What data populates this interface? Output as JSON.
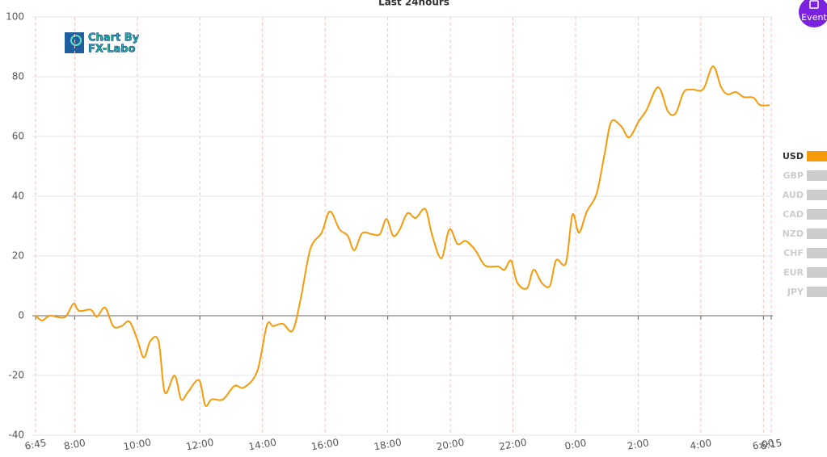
{
  "chart_data": {
    "type": "line",
    "title": "Last 24hours",
    "x": [
      6.75,
      6.96,
      7.21,
      7.68,
      7.96,
      8.14,
      8.51,
      8.71,
      8.97,
      9.23,
      9.49,
      9.75,
      10.0,
      10.21,
      10.42,
      10.68,
      10.88,
      11.19,
      11.4,
      11.61,
      11.97,
      12.17,
      12.38,
      12.74,
      13.1,
      13.41,
      13.83,
      14.14,
      14.34,
      14.65,
      14.96,
      15.22,
      15.53,
      15.89,
      16.15,
      16.46,
      16.72,
      16.93,
      17.18,
      17.49,
      17.75,
      17.96,
      18.17,
      18.37,
      18.63,
      18.89,
      19.2,
      19.41,
      19.71,
      19.97,
      20.23,
      20.49,
      20.8,
      21.11,
      21.52,
      21.73,
      21.94,
      22.14,
      22.45,
      22.66,
      22.92,
      23.18,
      23.38,
      23.69,
      23.9,
      24.11,
      24.36,
      24.67,
      24.93,
      25.14,
      25.45,
      25.71,
      26.02,
      26.27,
      26.64,
      26.95,
      27.2,
      27.46,
      27.72,
      28.08,
      28.39,
      28.65,
      28.86,
      29.12,
      29.37,
      29.68,
      29.89,
      30.2
    ],
    "series": [
      {
        "name": "USD",
        "color": "#f59b0b",
        "visible": true,
        "values": [
          0,
          -1.6,
          0,
          -0.5,
          4,
          1.6,
          2,
          -0.3,
          2.7,
          -3.5,
          -3.5,
          -2,
          -8,
          -14,
          -8.4,
          -8.6,
          -25.7,
          -20,
          -28,
          -25.7,
          -21.6,
          -30,
          -28,
          -28,
          -23.5,
          -24,
          -18.6,
          -3.2,
          -3.5,
          -2.7,
          -5,
          5.7,
          22.4,
          27.8,
          34.9,
          28.9,
          26.8,
          21.9,
          27.6,
          27.3,
          27.3,
          32.4,
          26.8,
          28.6,
          34.3,
          32.7,
          35.7,
          27.3,
          19.2,
          28.9,
          24,
          25,
          21.9,
          16.8,
          16.5,
          15.4,
          18.4,
          11,
          9.2,
          15.4,
          11,
          10,
          18.6,
          17.6,
          33.8,
          27.8,
          34.9,
          40.8,
          54.3,
          64.9,
          63.5,
          59.7,
          65.1,
          68.9,
          76.5,
          68.4,
          67.8,
          74.9,
          75.7,
          75.9,
          83.5,
          76.5,
          74.1,
          74.9,
          73.2,
          73,
          70.5,
          70.5
        ]
      },
      {
        "name": "GBP",
        "color": "#cccccc",
        "visible": false
      },
      {
        "name": "AUD",
        "color": "#cccccc",
        "visible": false
      },
      {
        "name": "CAD",
        "color": "#cccccc",
        "visible": false
      },
      {
        "name": "NZD",
        "color": "#cccccc",
        "visible": false
      },
      {
        "name": "CHF",
        "color": "#cccccc",
        "visible": false
      },
      {
        "name": "EUR",
        "color": "#cccccc",
        "visible": false
      },
      {
        "name": "JPY",
        "color": "#cccccc",
        "visible": false
      }
    ],
    "xlim": [
      6.75,
      30.25
    ],
    "xticks": [
      {
        "value": 6.75,
        "label": "6:45"
      },
      {
        "value": 8,
        "label": "8:00"
      },
      {
        "value": 10,
        "label": "10:00"
      },
      {
        "value": 12,
        "label": "12:00"
      },
      {
        "value": 14,
        "label": "14:00"
      },
      {
        "value": 16,
        "label": "16:00"
      },
      {
        "value": 18,
        "label": "18:00"
      },
      {
        "value": 20,
        "label": "20:00"
      },
      {
        "value": 22,
        "label": "22:00"
      },
      {
        "value": 24,
        "label": "0:00"
      },
      {
        "value": 26,
        "label": "2:00"
      },
      {
        "value": 28,
        "label": "4:00"
      },
      {
        "value": 30,
        "label": "6:00"
      },
      {
        "value": 30.25,
        "label": "6:15"
      }
    ],
    "ylim": [
      -40,
      100
    ],
    "yticks": [
      -40,
      -20,
      0,
      20,
      40,
      60,
      80,
      100
    ],
    "grid": true,
    "legend": "right"
  },
  "logo": {
    "line1": "Chart By",
    "line2": "FX-Labo"
  },
  "event_button": "Event"
}
